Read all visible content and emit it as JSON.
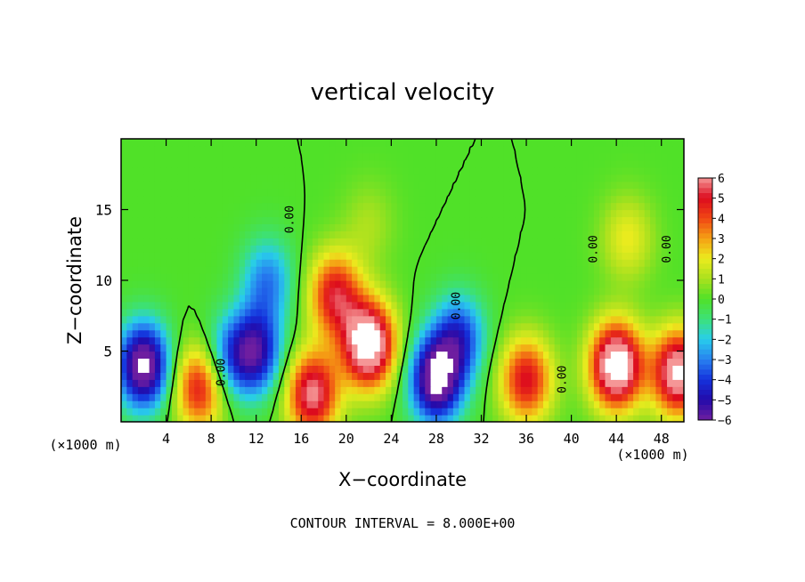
{
  "chart_data": {
    "type": "heatmap",
    "title": "vertical velocity",
    "xlabel": "X−coordinate",
    "ylabel": "Z−coordinate",
    "x_unit": "(×1000 m)",
    "y_unit": "(×1000 m)",
    "xlim": [
      0,
      50
    ],
    "ylim": [
      0,
      20
    ],
    "x_ticks": [
      "4",
      "8",
      "12",
      "16",
      "20",
      "24",
      "28",
      "32",
      "36",
      "40",
      "44",
      "48"
    ],
    "y_ticks": [
      "5",
      "10",
      "15"
    ],
    "colorbar": {
      "min": -6,
      "max": 6,
      "ticks": [
        "6",
        "5",
        "4",
        "3",
        "2",
        "1",
        "0",
        "−1",
        "−2",
        "−3",
        "−4",
        "−5",
        "−6"
      ]
    },
    "contour_label": "0.00",
    "contour_interval_text": "CONTOUR INTERVAL = 8.000E+00",
    "features": [
      {
        "x": 2,
        "z": 4,
        "w": -7
      },
      {
        "x": 7,
        "z": 2.5,
        "w": 5
      },
      {
        "x": 9.5,
        "z": 4.5,
        "w": -3
      },
      {
        "x": 12,
        "z": 5,
        "w": -5
      },
      {
        "x": 13,
        "z": 10,
        "w": -3
      },
      {
        "x": 17,
        "z": 2,
        "w": 6
      },
      {
        "x": 19,
        "z": 9,
        "w": 5
      },
      {
        "x": 22,
        "z": 5.5,
        "w": 8
      },
      {
        "x": 22,
        "z": 14,
        "w": 1
      },
      {
        "x": 28,
        "z": 3,
        "w": -7
      },
      {
        "x": 30,
        "z": 6,
        "w": -4
      },
      {
        "x": 36,
        "z": 3,
        "w": 5
      },
      {
        "x": 44,
        "z": 4,
        "w": 8
      },
      {
        "x": 45,
        "z": 13,
        "w": 2
      },
      {
        "x": 49.5,
        "z": 3.5,
        "w": 7
      }
    ]
  }
}
